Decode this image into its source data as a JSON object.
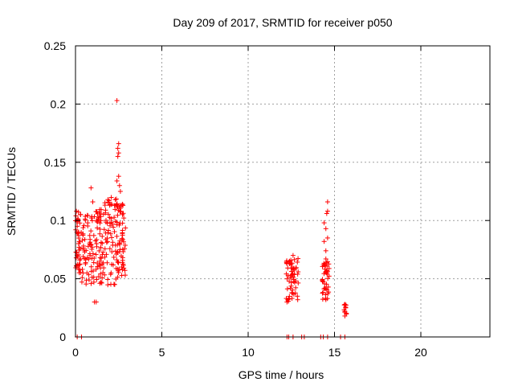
{
  "chart_data": {
    "type": "scatter",
    "title": "Day 209 of 2017, SRMTID for receiver p050",
    "xlabel": "GPS time / hours",
    "ylabel": "SRMTID / TECUs",
    "xlim": [
      0,
      24
    ],
    "ylim": [
      0,
      0.25
    ],
    "x_ticks": [
      0,
      5,
      10,
      15,
      20
    ],
    "x_tick_labels": [
      "0",
      "5",
      "10",
      "15",
      "20"
    ],
    "y_ticks": [
      0,
      0.05,
      0.1,
      0.15,
      0.2,
      0.25
    ],
    "y_tick_labels": [
      "0",
      "0.05",
      "0.1",
      "0.15",
      "0.2",
      "0.25"
    ],
    "grid": true,
    "marker": "+",
    "color": "#ff0000",
    "series": [
      {
        "name": "SRMTID",
        "clusters": [
          {
            "x_range": [
              0.0,
              0.3
            ],
            "y_range": [
              0.055,
              0.108
            ],
            "count": 45
          },
          {
            "x_range": [
              0.3,
              1.0
            ],
            "y_range": [
              0.045,
              0.105
            ],
            "count": 55
          },
          {
            "x_range": [
              1.0,
              1.7
            ],
            "y_range": [
              0.045,
              0.11
            ],
            "count": 65
          },
          {
            "x_range": [
              1.7,
              2.4
            ],
            "y_range": [
              0.042,
              0.12
            ],
            "count": 65
          },
          {
            "x_range": [
              2.4,
              2.9
            ],
            "y_range": [
              0.05,
              0.115
            ],
            "count": 60
          },
          {
            "x_range": [
              12.2,
              12.9
            ],
            "y_range": [
              0.03,
              0.068
            ],
            "count": 60
          },
          {
            "x_range": [
              14.3,
              14.7
            ],
            "y_range": [
              0.032,
              0.065
            ],
            "count": 40
          },
          {
            "x_range": [
              15.5,
              15.7
            ],
            "y_range": [
              0.018,
              0.03
            ],
            "count": 8
          }
        ],
        "points": [
          [
            0.9,
            0.128
          ],
          [
            1.0,
            0.116
          ],
          [
            0.4,
            0.083
          ],
          [
            1.1,
            0.03
          ],
          [
            1.2,
            0.03
          ],
          [
            2.4,
            0.203
          ],
          [
            2.5,
            0.166
          ],
          [
            2.45,
            0.162
          ],
          [
            2.5,
            0.158
          ],
          [
            2.45,
            0.155
          ],
          [
            2.5,
            0.138
          ],
          [
            2.4,
            0.134
          ],
          [
            2.55,
            0.13
          ],
          [
            2.6,
            0.125
          ],
          [
            2.3,
            0.118
          ],
          [
            2.4,
            0.112
          ],
          [
            2.6,
            0.113
          ],
          [
            2.75,
            0.113
          ],
          [
            12.6,
            0.07
          ],
          [
            14.6,
            0.116
          ],
          [
            14.6,
            0.108
          ],
          [
            14.55,
            0.106
          ],
          [
            14.4,
            0.098
          ],
          [
            14.5,
            0.093
          ],
          [
            14.6,
            0.085
          ],
          [
            14.4,
            0.082
          ],
          [
            14.5,
            0.074
          ],
          [
            14.5,
            0.067
          ],
          [
            14.5,
            0.032
          ],
          [
            15.6,
            0.028
          ],
          [
            15.65,
            0.025
          ],
          [
            15.6,
            0.022
          ],
          [
            15.6,
            0.018
          ],
          [
            0.1,
            0.0
          ],
          [
            0.35,
            0.0
          ],
          [
            12.25,
            0.0
          ],
          [
            12.35,
            0.0
          ],
          [
            12.6,
            0.0
          ],
          [
            13.1,
            0.0
          ],
          [
            13.25,
            0.0
          ],
          [
            14.2,
            0.0
          ],
          [
            14.35,
            0.0
          ],
          [
            14.6,
            0.0
          ],
          [
            15.35,
            0.0
          ],
          [
            15.6,
            0.0
          ]
        ]
      }
    ]
  }
}
